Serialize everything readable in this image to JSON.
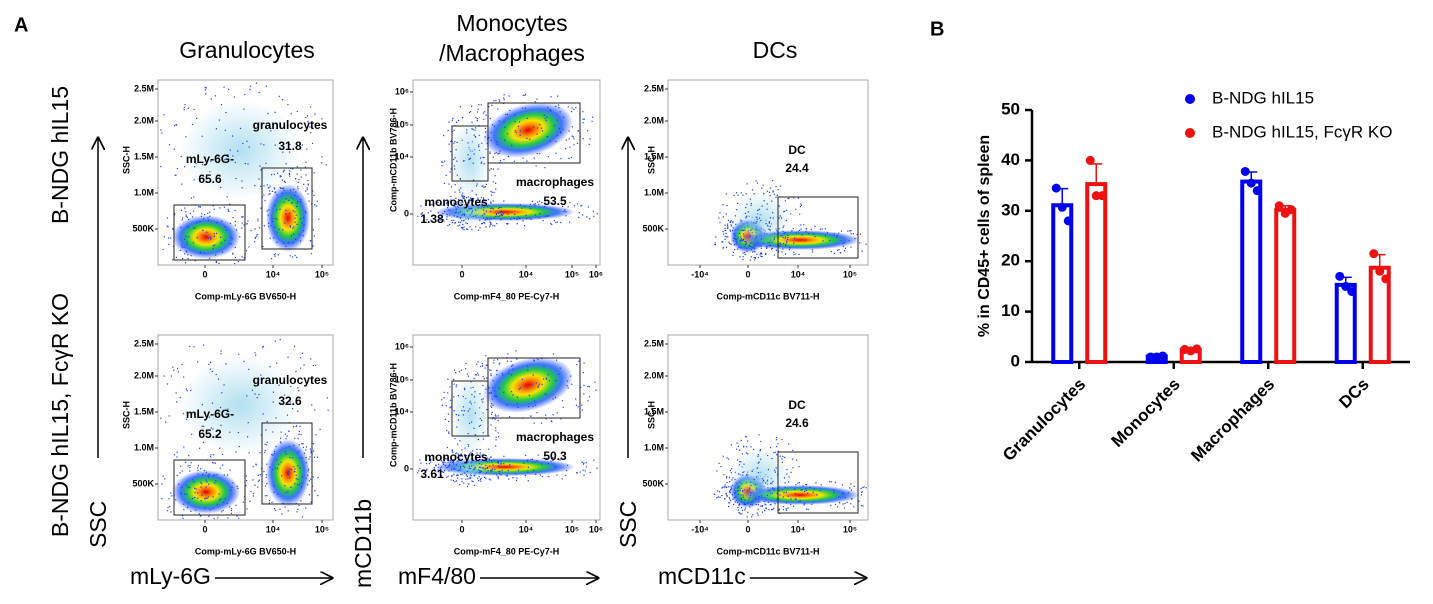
{
  "panel_a": {
    "label": "A",
    "column_titles": [
      [
        "Granulocytes"
      ],
      [
        "Monocytes",
        "/Macrophages"
      ],
      [
        "DCs"
      ]
    ],
    "row_labels": [
      "B-NDG hIL15",
      "B-NDG hIL15, FcγR KO"
    ],
    "y_arrows": [
      "SSC",
      "mCD11b",
      "SSC"
    ],
    "x_arrows": [
      "mLy-6G",
      "mF4/80",
      "mCD11c"
    ],
    "plots": [
      {
        "y_title": "SSC-H",
        "x_title": "Comp-mLy-6G BV650-H",
        "yticks": [
          "2.5M",
          "2.0M",
          "1.5M",
          "1.0M",
          "500K"
        ],
        "xticks": [
          "0",
          "10⁴",
          "10⁵"
        ],
        "gates": [
          {
            "name": "mLy-6G-",
            "value": 65.6
          },
          {
            "name": "granulocytes",
            "value": 31.8
          }
        ]
      },
      {
        "y_title": "Comp-mCD11b BV786-H",
        "x_title": "Comp-mF4_80 PE-Cy7-H",
        "yticks": [
          "10⁶",
          "10⁵",
          "10⁴",
          "0"
        ],
        "xticks": [
          "0",
          "10⁴",
          "10⁵",
          "10⁶"
        ],
        "gates": [
          {
            "name": "monocytes",
            "value": 1.38
          },
          {
            "name": "macrophages",
            "value": 53.5
          }
        ]
      },
      {
        "y_title": "SSC-H",
        "x_title": "Comp-mCD11c BV711-H",
        "yticks": [
          "2.5M",
          "2.0M",
          "1.5M",
          "1.0M",
          "500K"
        ],
        "xticks": [
          "-10⁴",
          "0",
          "10⁴",
          "10⁵"
        ],
        "gates": [
          {
            "name": "DC",
            "value": 24.4
          }
        ]
      },
      {
        "y_title": "SSC-H",
        "x_title": "Comp-mLy-6G BV650-H",
        "yticks": [
          "2.5M",
          "2.0M",
          "1.5M",
          "1.0M",
          "500K"
        ],
        "xticks": [
          "0",
          "10⁴",
          "10⁵"
        ],
        "gates": [
          {
            "name": "mLy-6G-",
            "value": 65.2
          },
          {
            "name": "granulocytes",
            "value": 32.6
          }
        ]
      },
      {
        "y_title": "Comp-mCD11b BV786-H",
        "x_title": "Comp-mF4_80 PE-Cy7-H",
        "yticks": [
          "10⁶",
          "10⁵",
          "10⁴",
          "0"
        ],
        "xticks": [
          "0",
          "10⁴",
          "10⁵",
          "10⁶"
        ],
        "gates": [
          {
            "name": "monocytes",
            "value": 3.61
          },
          {
            "name": "macrophages",
            "value": 50.3
          }
        ]
      },
      {
        "y_title": "SSC-H",
        "x_title": "Comp-mCD11c BV711-H",
        "yticks": [
          "2.5M",
          "2.0M",
          "1.5M",
          "1.0M",
          "500K"
        ],
        "xticks": [
          "-10⁴",
          "0",
          "10⁴",
          "10⁵"
        ],
        "gates": [
          {
            "name": "DC",
            "value": 24.6
          }
        ]
      }
    ]
  },
  "chart_data": {
    "type": "bar",
    "label": "B",
    "y_label": "% in CD45+ cells of spleen",
    "categories": [
      "Granulocytes",
      "Monocytes",
      "Macrophages",
      "DCs"
    ],
    "ylim": [
      0,
      50
    ],
    "yticks": [
      0,
      10,
      20,
      30,
      40,
      50
    ],
    "series": [
      {
        "name": "B-NDG hIL15",
        "color": "#0000ee",
        "values": [
          31.1,
          1.1,
          35.8,
          15.3
        ],
        "errors": [
          3.3,
          0.1,
          1.9,
          1.5
        ],
        "points": [
          [
            34.5,
            30.7,
            28
          ],
          [
            1,
            1,
            1.2
          ],
          [
            37.8,
            35.5,
            34
          ],
          [
            17,
            15,
            14
          ]
        ]
      },
      {
        "name": "B-NDG hIL15, FcγR KO",
        "color": "#ee1111",
        "values": [
          35.3,
          2.4,
          30.2,
          18.7
        ],
        "errors": [
          4.0,
          0.2,
          0.8,
          2.6
        ],
        "points": [
          [
            40,
            33,
            33
          ],
          [
            2.5,
            2.2,
            2.6
          ],
          [
            31,
            29.5,
            30.2
          ],
          [
            21.5,
            18,
            16.5
          ]
        ]
      }
    ]
  }
}
